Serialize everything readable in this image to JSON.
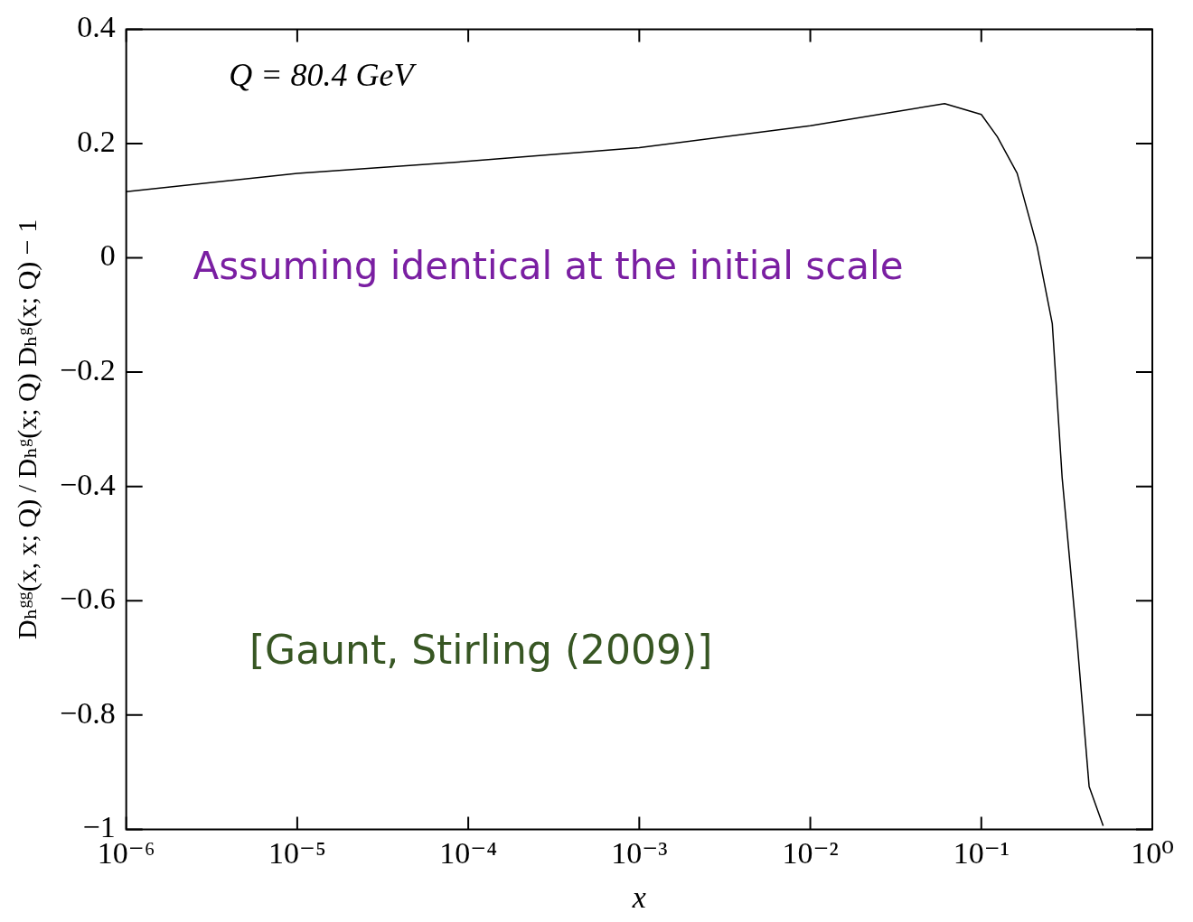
{
  "chart_data": {
    "type": "line",
    "xlabel": "x",
    "ylabel": "Dₕᵍᵍ(x, x; Q) / Dₕᵍ(x; Q) Dₕᵍ(x; Q) − 1",
    "annotations": [
      "Q = 80.4 GeV",
      "Assuming identical at the initial scale",
      "[Gaunt, Stirling (2009)]"
    ],
    "log": "x",
    "grid": false,
    "legend": false,
    "marker": "none",
    "line_style": "solid",
    "xlim": [
      1e-06,
      1
    ],
    "xticks": [
      {
        "value": 1e-06,
        "label": "10⁻⁶"
      },
      {
        "value": 1e-05,
        "label": "10⁻⁵"
      },
      {
        "value": 0.0001,
        "label": "10⁻⁴"
      },
      {
        "value": 0.001,
        "label": "10⁻³"
      },
      {
        "value": 0.01,
        "label": "10⁻²"
      },
      {
        "value": 0.1,
        "label": "10⁻¹"
      },
      {
        "value": 1,
        "label": "10⁰"
      }
    ],
    "ylim": [
      -1,
      0.4
    ],
    "yticks": [
      {
        "value": -1,
        "label": "−1"
      },
      {
        "value": -0.8,
        "label": "−0.8"
      },
      {
        "value": -0.6,
        "label": "−0.6"
      },
      {
        "value": -0.4,
        "label": "−0.4"
      },
      {
        "value": -0.2,
        "label": "−0.2"
      },
      0,
      0.2,
      0.4
    ],
    "series": [
      {
        "color": "#000000",
        "x": [
          1e-06,
          1e-05,
          0.0001,
          0.001,
          0.01,
          0.061,
          0.1,
          0.124,
          0.162,
          0.212,
          0.26,
          0.297,
          0.363,
          0.427,
          0.516
        ],
        "values": [
          0.116,
          0.148,
          0.169,
          0.193,
          0.231,
          0.27,
          0.251,
          0.212,
          0.148,
          0.02,
          -0.115,
          -0.385,
          -0.67,
          -0.925,
          -0.994
        ]
      }
    ]
  }
}
